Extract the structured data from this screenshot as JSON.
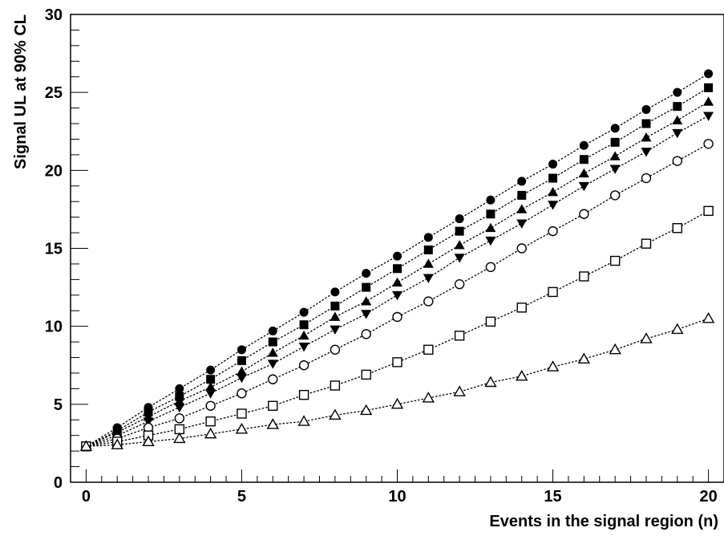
{
  "chart_data": {
    "type": "scatter",
    "title": "",
    "xlabel": "Events in the signal region (n)",
    "ylabel": "Signal UL at 90% CL",
    "xlim": [
      -0.5,
      20.5
    ],
    "ylim": [
      0,
      30
    ],
    "x_ticks": [
      0,
      5,
      10,
      15,
      20
    ],
    "y_ticks": [
      0,
      5,
      10,
      15,
      20,
      25,
      30
    ],
    "grid": false,
    "line_style": "dotted",
    "x": [
      0,
      1,
      2,
      3,
      4,
      5,
      6,
      7,
      8,
      9,
      10,
      11,
      12,
      13,
      14,
      15,
      16,
      17,
      18,
      19,
      20
    ],
    "series": [
      {
        "marker": "filled-circle",
        "values": [
          2.3,
          3.5,
          4.8,
          6.0,
          7.2,
          8.5,
          9.7,
          10.9,
          12.2,
          13.4,
          14.5,
          15.7,
          16.9,
          18.1,
          19.3,
          20.4,
          21.6,
          22.7,
          23.9,
          25.0,
          26.2
        ]
      },
      {
        "marker": "filled-square",
        "values": [
          2.3,
          3.3,
          4.5,
          5.5,
          6.6,
          7.8,
          9.0,
          10.1,
          11.3,
          12.5,
          13.7,
          14.9,
          16.1,
          17.2,
          18.4,
          19.5,
          20.7,
          21.8,
          23.0,
          24.1,
          25.3
        ]
      },
      {
        "marker": "filled-triangle-up",
        "values": [
          2.3,
          3.2,
          4.2,
          5.2,
          6.1,
          7.1,
          8.3,
          9.4,
          10.6,
          11.6,
          12.8,
          14.0,
          15.2,
          16.3,
          17.5,
          18.6,
          19.8,
          20.9,
          22.1,
          23.2,
          24.4
        ]
      },
      {
        "marker": "filled-triangle-down",
        "values": [
          2.3,
          3.0,
          3.9,
          4.8,
          5.7,
          6.7,
          7.6,
          8.7,
          9.8,
          10.8,
          12.0,
          13.1,
          14.4,
          15.5,
          16.6,
          17.8,
          19.0,
          20.1,
          21.2,
          22.4,
          23.5
        ]
      },
      {
        "marker": "open-circle",
        "values": [
          2.3,
          2.8,
          3.5,
          4.1,
          4.9,
          5.7,
          6.6,
          7.5,
          8.5,
          9.5,
          10.6,
          11.6,
          12.7,
          13.8,
          15.0,
          16.1,
          17.2,
          18.4,
          19.5,
          20.6,
          21.7
        ]
      },
      {
        "marker": "open-square",
        "values": [
          2.3,
          2.6,
          3.0,
          3.4,
          3.9,
          4.4,
          4.9,
          5.6,
          6.2,
          6.9,
          7.7,
          8.5,
          9.4,
          10.3,
          11.2,
          12.2,
          13.2,
          14.2,
          15.3,
          16.3,
          17.4
        ]
      },
      {
        "marker": "open-triangle-up",
        "values": [
          2.3,
          2.4,
          2.6,
          2.8,
          3.1,
          3.4,
          3.7,
          3.9,
          4.3,
          4.6,
          5.0,
          5.4,
          5.8,
          6.4,
          6.8,
          7.4,
          7.9,
          8.5,
          9.2,
          9.8,
          10.5
        ]
      }
    ]
  }
}
